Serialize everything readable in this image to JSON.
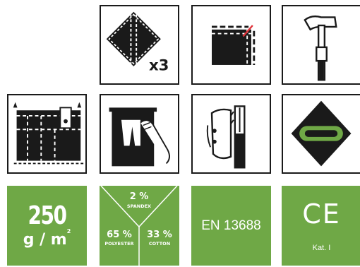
{
  "colors": {
    "green": "#6fa846",
    "dark": "#1a1a1a",
    "white": "#ffffff"
  },
  "icons": {
    "row1": [
      "wash-x3-diamond-icon",
      "fabric-trim-icon",
      "hammer-icon"
    ],
    "row2": [
      "pocket-bag-icon",
      "trouser-hanger-icon",
      "knife-holster-icon",
      "reflective-band-icon"
    ]
  },
  "wash_count": "x3",
  "weight": {
    "value": "250",
    "unit": "g / m",
    "sup": "2"
  },
  "composition": {
    "spandex": {
      "percent": "2 %",
      "label": "SPANDEX"
    },
    "polyester": {
      "percent": "65 %",
      "label": "POLYESTER"
    },
    "cotton": {
      "percent": "33 %",
      "label": "COTTON"
    }
  },
  "standard": "EN 13688",
  "ce": {
    "mark": "CE",
    "category": "Kat. I"
  }
}
